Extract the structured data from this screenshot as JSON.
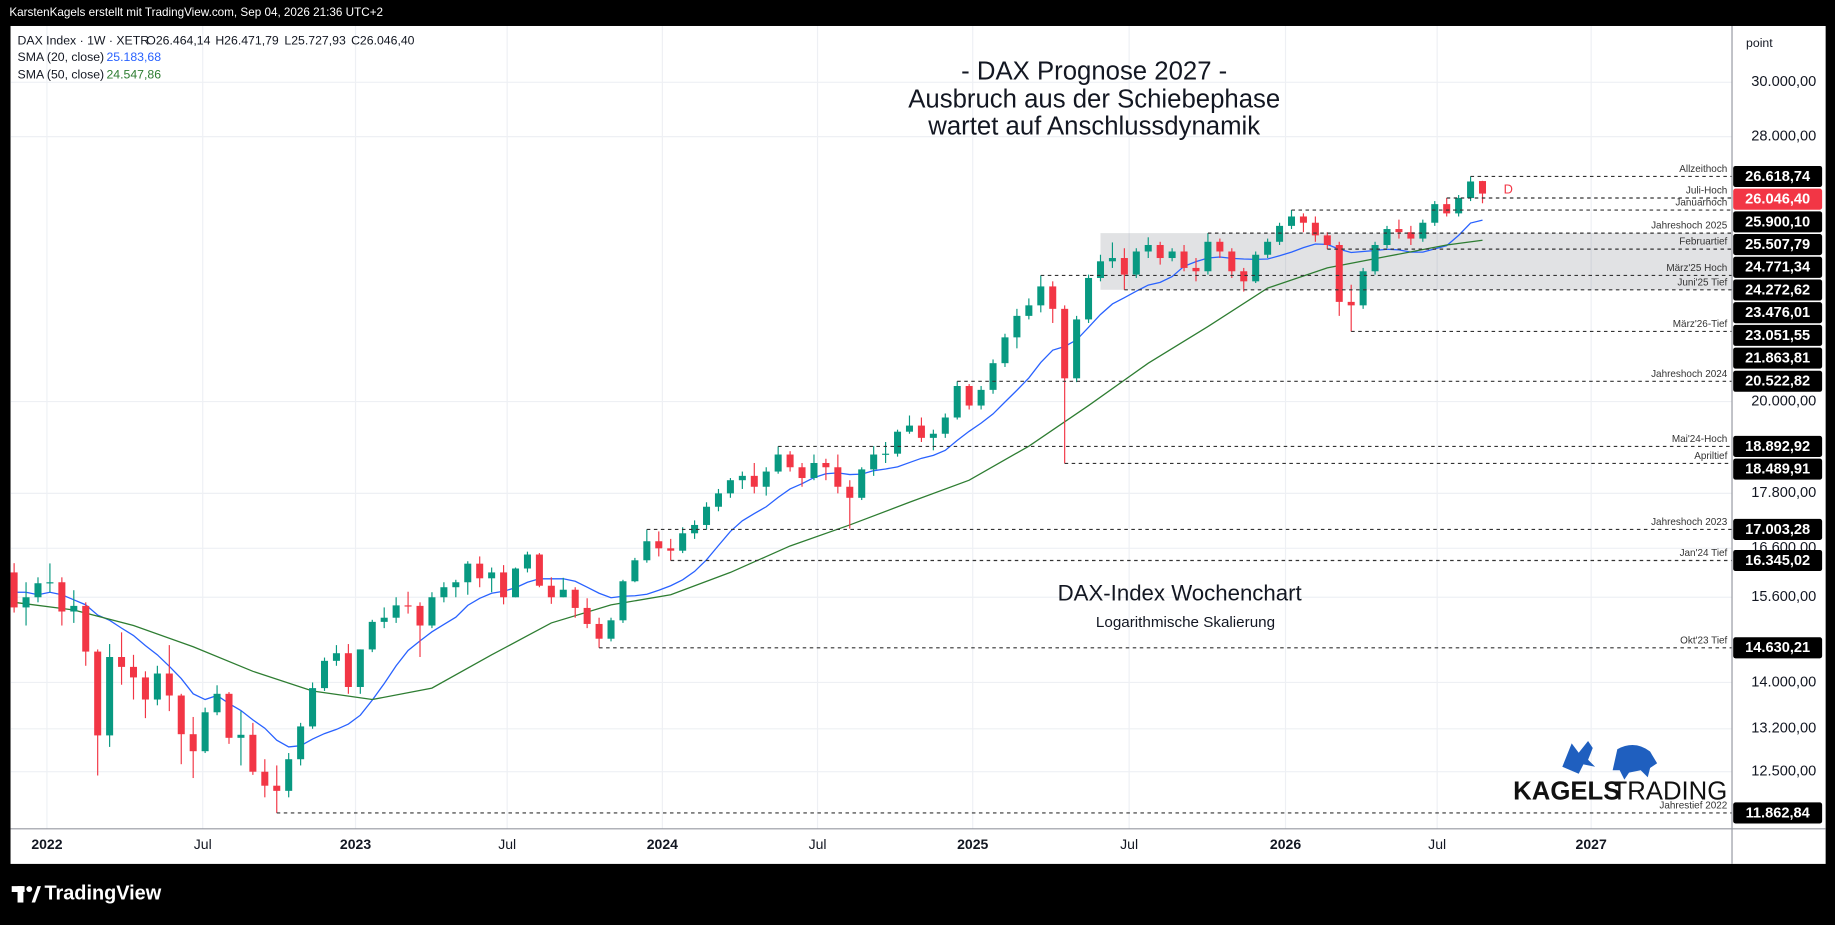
{
  "chart_data": {
    "type": "candlestick",
    "top_bar": "KarstenKagels erstellt mit TradingView.com, Sep 04, 2026 21:36 UTC+2",
    "title": [
      "- DAX Prognose 2027 -",
      "Ausbruch aus der Schiebephase",
      "wartet auf Anschlussdynamik"
    ],
    "symbol": "DAX Index · 1W · XETR",
    "ohlc_labels": [
      "O26.464,14",
      "H26.471,79",
      "L25.727,93",
      "C26.046,40"
    ],
    "annotation": "DAX-Index Wochenchart",
    "subtitle": "Logarithmische Skalierung",
    "brand": [
      "KAGELS",
      "TRADING"
    ],
    "footer": "TradingView",
    "y_unit": "point",
    "event_marker": "D",
    "log": true,
    "grid": true,
    "up_color": "#089981",
    "down_color": "#f23645",
    "ohlc": [
      [
        16100,
        16290,
        15300,
        15400
      ],
      [
        15400,
        15900,
        15050,
        15600
      ],
      [
        15600,
        16000,
        15500,
        15880
      ],
      [
        15880,
        16285,
        15700,
        15900
      ],
      [
        15900,
        16000,
        15050,
        15320
      ],
      [
        15320,
        15740,
        15100,
        15430
      ],
      [
        15430,
        15500,
        14300,
        14560
      ],
      [
        14560,
        14600,
        12440,
        13090
      ],
      [
        13090,
        14700,
        12900,
        14460
      ],
      [
        14460,
        14920,
        13960,
        14280
      ],
      [
        14280,
        14500,
        13700,
        14090
      ],
      [
        14090,
        14200,
        13380,
        13700
      ],
      [
        13700,
        14300,
        13600,
        14160
      ],
      [
        14160,
        14680,
        13500,
        13770
      ],
      [
        13770,
        13800,
        12620,
        13110
      ],
      [
        13110,
        13400,
        12400,
        12830
      ],
      [
        12830,
        13560,
        12800,
        13480
      ],
      [
        13480,
        13950,
        13430,
        13800
      ],
      [
        13800,
        13830,
        12950,
        13050
      ],
      [
        13050,
        13500,
        12600,
        13100
      ],
      [
        13100,
        13300,
        12450,
        12500
      ],
      [
        12500,
        12700,
        12100,
        12280
      ],
      [
        12280,
        12600,
        11863,
        12200
      ],
      [
        12200,
        12800,
        12100,
        12700
      ],
      [
        12700,
        13300,
        12600,
        13240
      ],
      [
        13240,
        14000,
        13200,
        13900
      ],
      [
        13900,
        14450,
        13850,
        14390
      ],
      [
        14390,
        14680,
        14300,
        14530
      ],
      [
        14530,
        14700,
        13800,
        13920
      ],
      [
        13920,
        14600,
        13800,
        14600
      ],
      [
        14600,
        15160,
        14550,
        15120
      ],
      [
        15120,
        15400,
        15000,
        15200
      ],
      [
        15200,
        15600,
        15100,
        15440
      ],
      [
        15440,
        15710,
        15280,
        15430
      ],
      [
        15430,
        15500,
        14460,
        15050
      ],
      [
        15050,
        15700,
        15000,
        15600
      ],
      [
        15600,
        15900,
        15500,
        15800
      ],
      [
        15800,
        15950,
        15600,
        15900
      ],
      [
        15900,
        16330,
        15650,
        16280
      ],
      [
        16280,
        16430,
        15800,
        15980
      ],
      [
        15980,
        16200,
        15700,
        16100
      ],
      [
        16100,
        16250,
        15460,
        15600
      ],
      [
        15600,
        16200,
        15600,
        16180
      ],
      [
        16180,
        16530,
        16100,
        16470
      ],
      [
        16470,
        16500,
        15800,
        15830
      ],
      [
        15830,
        16000,
        15470,
        15600
      ],
      [
        15600,
        15990,
        15600,
        15750
      ],
      [
        15750,
        15800,
        15200,
        15390
      ],
      [
        15390,
        15580,
        15000,
        15080
      ],
      [
        15080,
        15200,
        14630,
        14800
      ],
      [
        14800,
        15200,
        14750,
        15150
      ],
      [
        15150,
        15950,
        15100,
        15920
      ],
      [
        15920,
        16400,
        15900,
        16350
      ],
      [
        16350,
        17003,
        16300,
        16750
      ],
      [
        16750,
        16960,
        16430,
        16600
      ],
      [
        16600,
        16800,
        16345,
        16550
      ],
      [
        16550,
        17050,
        16500,
        16920
      ],
      [
        16920,
        17200,
        16800,
        17100
      ],
      [
        17100,
        17600,
        17000,
        17500
      ],
      [
        17500,
        17900,
        17400,
        17800
      ],
      [
        17800,
        18150,
        17700,
        18100
      ],
      [
        18100,
        18300,
        17900,
        18200
      ],
      [
        18200,
        18500,
        17800,
        17950
      ],
      [
        17950,
        18400,
        17750,
        18300
      ],
      [
        18300,
        18893,
        18250,
        18700
      ],
      [
        18700,
        18780,
        18300,
        18400
      ],
      [
        18400,
        18500,
        17950,
        18150
      ],
      [
        18150,
        18700,
        18100,
        18500
      ],
      [
        18500,
        18600,
        18100,
        18400
      ],
      [
        18400,
        18700,
        17800,
        17950
      ],
      [
        17950,
        18100,
        17020,
        17700
      ],
      [
        17700,
        18400,
        17650,
        18350
      ],
      [
        18350,
        18900,
        18200,
        18700
      ],
      [
        18700,
        19000,
        18500,
        18720
      ],
      [
        18720,
        19300,
        18650,
        19250
      ],
      [
        19250,
        19650,
        19200,
        19400
      ],
      [
        19400,
        19600,
        19000,
        19100
      ],
      [
        19100,
        19300,
        18800,
        19200
      ],
      [
        19200,
        19700,
        19100,
        19600
      ],
      [
        19600,
        20523,
        19550,
        20400
      ],
      [
        20400,
        20450,
        19800,
        19900
      ],
      [
        19900,
        20400,
        19800,
        20300
      ],
      [
        20300,
        21100,
        20200,
        21000
      ],
      [
        21000,
        21800,
        20900,
        21700
      ],
      [
        21700,
        22500,
        21400,
        22300
      ],
      [
        22300,
        22800,
        22200,
        22600
      ],
      [
        22600,
        23476,
        22400,
        23150
      ],
      [
        23150,
        23300,
        22100,
        22500
      ],
      [
        22500,
        22600,
        18490,
        20600
      ],
      [
        20600,
        22300,
        20500,
        22200
      ],
      [
        22200,
        23500,
        22100,
        23400
      ],
      [
        23400,
        24100,
        23300,
        23900
      ],
      [
        23900,
        24480,
        23700,
        24000
      ],
      [
        24000,
        24300,
        23052,
        23500
      ],
      [
        23500,
        24300,
        23400,
        24200
      ],
      [
        24200,
        24640,
        24000,
        24400
      ],
      [
        24400,
        24500,
        23800,
        24000
      ],
      [
        24000,
        24300,
        23900,
        24200
      ],
      [
        24200,
        24400,
        23600,
        23700
      ],
      [
        23700,
        24000,
        23300,
        23600
      ],
      [
        23600,
        24772,
        23500,
        24500
      ],
      [
        24500,
        24600,
        24000,
        24200
      ],
      [
        24200,
        24300,
        23400,
        23600
      ],
      [
        23600,
        23700,
        23000,
        23300
      ],
      [
        23300,
        24200,
        23250,
        24100
      ],
      [
        24100,
        24600,
        24000,
        24500
      ],
      [
        24500,
        25100,
        24400,
        25000
      ],
      [
        25000,
        25508,
        24900,
        25300
      ],
      [
        25300,
        25400,
        24800,
        25100
      ],
      [
        25100,
        25300,
        24500,
        24700
      ],
      [
        24700,
        24800,
        24273,
        24400
      ],
      [
        24400,
        24500,
        22300,
        22700
      ],
      [
        22700,
        23200,
        21864,
        22600
      ],
      [
        22600,
        23700,
        22500,
        23600
      ],
      [
        23600,
        24500,
        23500,
        24400
      ],
      [
        24400,
        25000,
        24300,
        24900
      ],
      [
        24900,
        25200,
        24600,
        24800
      ],
      [
        24800,
        25000,
        24400,
        24600
      ],
      [
        24600,
        25200,
        24500,
        25100
      ],
      [
        25100,
        25800,
        25000,
        25700
      ],
      [
        25700,
        25900,
        25300,
        25400
      ],
      [
        25400,
        26000,
        25300,
        25900
      ],
      [
        25900,
        26619,
        25800,
        26450
      ],
      [
        26464.14,
        26471.79,
        25727.93,
        26046.4
      ]
    ],
    "series": [
      {
        "name": "SMA (20, close)",
        "color": "#2962ff",
        "last_label": "25.183,68",
        "values": [
          15700,
          15700,
          15650,
          15700,
          15650,
          15550,
          15450,
          15250,
          15150,
          15000,
          14860,
          14670,
          14500,
          14290,
          14070,
          13800,
          13700,
          13770,
          13630,
          13510,
          13350,
          13210,
          13010,
          12900,
          12920,
          13030,
          13120,
          13190,
          13280,
          13430,
          13690,
          13980,
          14300,
          14580,
          14760,
          14930,
          15070,
          15210,
          15440,
          15580,
          15680,
          15720,
          15790,
          15900,
          15970,
          15970,
          15970,
          15920,
          15800,
          15680,
          15590,
          15620,
          15630,
          15660,
          15740,
          15830,
          15950,
          16120,
          16360,
          16660,
          16960,
          17190,
          17350,
          17500,
          17710,
          17900,
          18020,
          18160,
          18250,
          18270,
          18230,
          18240,
          18320,
          18360,
          18410,
          18510,
          18610,
          18680,
          18800,
          19040,
          19260,
          19460,
          19690,
          19990,
          20290,
          20610,
          21020,
          21350,
          21450,
          21630,
          21980,
          22340,
          22640,
          22820,
          23010,
          23190,
          23270,
          23440,
          23750,
          23890,
          24000,
          24030,
          23990,
          23970,
          23960,
          23970,
          24070,
          24180,
          24320,
          24430,
          24420,
          24270,
          24170,
          24200,
          24230,
          24270,
          24250,
          24180,
          24180,
          24280,
          24380,
          24700,
          25090,
          25183.68
        ]
      },
      {
        "name": "SMA (50, close)",
        "color": "#2e7d32",
        "last_label": "24.547,86",
        "x": [
          0,
          5,
          10,
          15,
          20,
          25,
          30,
          35,
          40,
          45,
          50,
          55,
          60,
          65,
          70,
          75,
          80,
          85,
          90,
          95,
          100,
          105,
          110,
          115,
          120,
          123
        ],
        "values": [
          15500,
          15350,
          15050,
          14650,
          14200,
          13850,
          13700,
          13900,
          14500,
          15100,
          15450,
          15650,
          16100,
          16650,
          17100,
          17600,
          18100,
          18900,
          19900,
          21000,
          22000,
          23100,
          23700,
          24050,
          24400,
          24547.86
        ]
      }
    ],
    "last_price": {
      "value": 26046.4,
      "label": "26.046,40",
      "color": "#f23645"
    },
    "levels": [
      {
        "value": 26618.74,
        "label": "26.618,74",
        "name": "Allzeithoch"
      },
      {
        "value": 25900.1,
        "label": "25.900,10",
        "name": "Juli-Hoch"
      },
      {
        "value": 25507.79,
        "label": "25.507,79",
        "name": "Januarhoch"
      },
      {
        "value": 24771.34,
        "label": "24.771,34",
        "name": "Jahreshoch 2025"
      },
      {
        "value": 24272.62,
        "label": "24.272,62",
        "name": "Februartief"
      },
      {
        "value": 23476.01,
        "label": "23.476,01",
        "name": "März'25 Hoch"
      },
      {
        "value": 23051.55,
        "label": "23.051,55",
        "name": "Juni'25 Tief"
      },
      {
        "value": 21863.81,
        "label": "21.863,81",
        "name": "März'26-Tief"
      },
      {
        "value": 20522.82,
        "label": "20.522,82",
        "name": "Jahreshoch 2024"
      },
      {
        "value": 18892.92,
        "label": "18.892,92",
        "name": "Mai'24-Hoch"
      },
      {
        "value": 18489.91,
        "label": "18.489,91",
        "name": "Apriltief"
      },
      {
        "value": 17003.28,
        "label": "17.003,28",
        "name": "Jahreshoch 2023"
      },
      {
        "value": 16345.02,
        "label": "16.345,02",
        "name": "Jan'24 Tief"
      },
      {
        "value": 14630.21,
        "label": "14.630,21",
        "name": "Okt'23 Tief"
      },
      {
        "value": 11862.84,
        "label": "11.862,84",
        "name": "Jahrestief 2022"
      }
    ],
    "xlim": [
      -0.3,
      143.9
    ],
    "xticks": [
      {
        "value": 2.75,
        "label": "2022"
      },
      {
        "value": 15.8,
        "label": "Jul"
      },
      {
        "value": 28.6,
        "label": "2023"
      },
      {
        "value": 41.3,
        "label": "Jul"
      },
      {
        "value": 54.3,
        "label": "2024"
      },
      {
        "value": 67.3,
        "label": "Jul"
      },
      {
        "value": 80.3,
        "label": "2025"
      },
      {
        "value": 93.4,
        "label": "Jul"
      },
      {
        "value": 106.5,
        "label": "2026"
      },
      {
        "value": 119.2,
        "label": "Jul"
      },
      {
        "value": 132.1,
        "label": "2027"
      }
    ],
    "ylim": [
      11626,
      32224
    ],
    "yticks": [
      {
        "value": 30000,
        "label": "30.000,00"
      },
      {
        "value": 28000,
        "label": "28.000,00"
      },
      {
        "value": 20000,
        "label": "20.000,00"
      },
      {
        "value": 17800,
        "label": "17.800,00"
      },
      {
        "value": 16600,
        "label": "16.600,00"
      },
      {
        "value": 15600,
        "label": "15.600,00"
      },
      {
        "value": 14000,
        "label": "14.000,00"
      },
      {
        "value": 13200,
        "label": "13.200,00"
      },
      {
        "value": 12500,
        "label": "12.500,00"
      }
    ]
  }
}
